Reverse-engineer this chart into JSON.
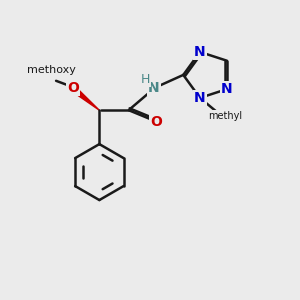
{
  "bg_color": "#ebebeb",
  "bond_color": "#1a1a1a",
  "n_color": "#0000cc",
  "o_color": "#cc0000",
  "nh_color": "#4a8888",
  "lw": 1.8,
  "dbo": 0.07,
  "figsize": [
    3.0,
    3.0
  ],
  "dpi": 100,
  "xlim": [
    0,
    10
  ],
  "ylim": [
    0,
    10
  ]
}
